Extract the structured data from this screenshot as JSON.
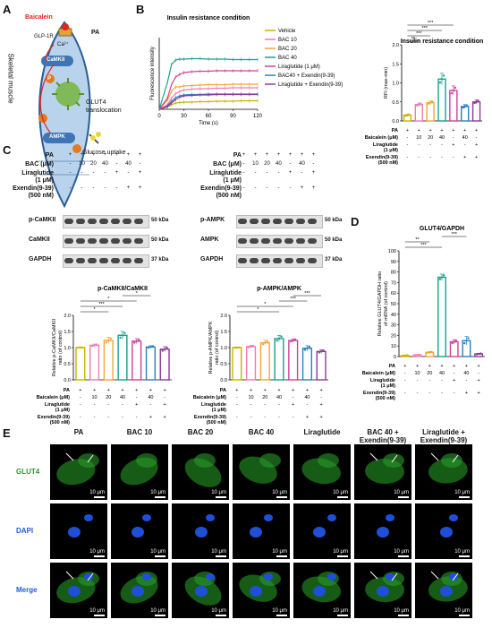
{
  "panels": {
    "A": {
      "letter": "A",
      "receptor_label": "GLP-1R",
      "drug_label": "Baicalein",
      "pa_label": "PA",
      "ca_label": "Ca²⁺",
      "camkii_label": "CaMKII",
      "ampk_label": "AMPK",
      "p_label": "P",
      "tissue_label": "Skeletal muscle",
      "translocation_label": "GLUT4\ntranslocation",
      "uptake_label": "Glucose uptake",
      "colors": {
        "drug": "#e0261c",
        "cell_fill": "#b9d3ec",
        "cell_stroke": "#2d5c94",
        "camkii": "#3f74b5",
        "ampk": "#3f74b5",
        "p": "#e07b22",
        "glut4": "#7ab648"
      }
    },
    "B": {
      "letter": "B",
      "line_title": "Insulin resistance condition",
      "bar_title": "Insulin resistance condition"
    },
    "C": {
      "letter": "C",
      "pa_label": "PA",
      "bac_label": "BAC (μM)",
      "lira_label": "Liraglutide\n(1 μM)",
      "exendin_label": "Exendin(9-39)\n(500 nM)",
      "left_blots": [
        {
          "label": "p-CaMKII",
          "kda": "50 kDa"
        },
        {
          "label": "CaMKII",
          "kda": "50 kDa"
        },
        {
          "label": "GAPDH",
          "kda": "37 kDa"
        }
      ],
      "right_blots": [
        {
          "label": "p-AMPK",
          "kda": "50 kDa"
        },
        {
          "label": "AMPK",
          "kda": "50 kDa"
        },
        {
          "label": "GAPDH",
          "kda": "37 kDa"
        }
      ],
      "blot_pa": [
        "+",
        "+",
        "+",
        "+",
        "+",
        "+",
        "+"
      ],
      "blot_bac": [
        "-",
        "10",
        "20",
        "40",
        "-",
        "40",
        "-"
      ],
      "blot_lira": [
        "-",
        "-",
        "-",
        "-",
        "+",
        "-",
        "+"
      ],
      "blot_exendin": [
        "-",
        "-",
        "-",
        "-",
        "-",
        "+",
        "+"
      ]
    },
    "D": {
      "letter": "D"
    },
    "E": {
      "letter": "E",
      "columns": [
        "PA",
        "BAC 10",
        "BAC 20",
        "BAC 40",
        "Liraglutide",
        "BAC 40 +\nExendin(9-39)",
        "Liraglutide +\nExendin(9-39)"
      ],
      "rows": [
        {
          "label": "GLUT4",
          "color": "#2e9a2e"
        },
        {
          "label": "DAPI",
          "color": "#1f5fd6"
        },
        {
          "label": "Merge",
          "color": "#1f5fd6"
        }
      ],
      "scale_label": "10 μm"
    }
  },
  "bar_axis_labels": {
    "pa": "PA",
    "baicalein": "Baicalein (μM)",
    "liraglutide": "Liraglutide\n(1 μM)",
    "exendin": "Exendin(9-39)\n(500 nM)"
  },
  "bar_axis_values": {
    "pa": [
      "+",
      "+",
      "+",
      "+",
      "+",
      "+",
      "+"
    ],
    "baicalein": [
      "-",
      "10",
      "20",
      "40",
      "-",
      "40",
      "-"
    ],
    "liraglutide": [
      "-",
      "-",
      "-",
      "-",
      "+",
      "-",
      "+"
    ],
    "exendin": [
      "-",
      "-",
      "-",
      "-",
      "-",
      "+",
      "+"
    ]
  },
  "chart_data": [
    {
      "id": "B-line",
      "type": "line",
      "title": "Insulin resistance condition",
      "xlabel": "Time (s)",
      "ylabel": "Fluorescence intensity",
      "xlim": [
        0,
        120
      ],
      "xticks": [
        0,
        30,
        60,
        90,
        120
      ],
      "ylim": [
        0,
        1.6
      ],
      "legend_position": "right",
      "x": [
        0,
        10,
        15,
        20,
        25,
        30,
        40,
        50,
        60,
        70,
        80,
        90,
        100,
        110,
        120
      ],
      "series": [
        {
          "name": "Vehicle",
          "color": "#c8b400",
          "values": [
            0.0,
            0.05,
            0.1,
            0.14,
            0.15,
            0.16,
            0.16,
            0.17,
            0.17,
            0.18,
            0.18,
            0.18,
            0.19,
            0.19,
            0.19
          ]
        },
        {
          "name": "BAC 10",
          "color": "#ee7cb1",
          "values": [
            0.0,
            0.1,
            0.25,
            0.35,
            0.4,
            0.43,
            0.45,
            0.46,
            0.46,
            0.47,
            0.47,
            0.48,
            0.48,
            0.48,
            0.48
          ]
        },
        {
          "name": "BAC 20",
          "color": "#f3a53a",
          "values": [
            0.0,
            0.2,
            0.4,
            0.5,
            0.5,
            0.52,
            0.53,
            0.54,
            0.55,
            0.55,
            0.55,
            0.56,
            0.56,
            0.56,
            0.56
          ]
        },
        {
          "name": "BAC 40",
          "color": "#19a08e",
          "values": [
            0.0,
            0.6,
            1.0,
            1.1,
            1.12,
            1.12,
            1.13,
            1.13,
            1.12,
            1.12,
            1.12,
            1.11,
            1.11,
            1.11,
            1.11
          ]
        },
        {
          "name": "Liraglutide (1 μM)",
          "color": "#d1409a",
          "values": [
            0.0,
            0.25,
            0.55,
            0.72,
            0.78,
            0.82,
            0.84,
            0.85,
            0.85,
            0.86,
            0.86,
            0.86,
            0.86,
            0.86,
            0.86
          ]
        },
        {
          "name": "BAC40 + Exendin(9-39)",
          "color": "#2c7fc2",
          "values": [
            0.0,
            0.08,
            0.18,
            0.26,
            0.3,
            0.32,
            0.33,
            0.33,
            0.34,
            0.34,
            0.34,
            0.34,
            0.34,
            0.34,
            0.34
          ]
        },
        {
          "name": "Liraglutide + Exendin(9-39)",
          "color": "#8a3b94",
          "values": [
            0.0,
            0.06,
            0.14,
            0.22,
            0.27,
            0.3,
            0.31,
            0.32,
            0.32,
            0.33,
            0.33,
            0.33,
            0.33,
            0.33,
            0.33
          ]
        }
      ]
    },
    {
      "id": "B-bar",
      "type": "bar",
      "title": "Insulin resistance condition",
      "ylabel": "RFI (max-min)",
      "ylim": [
        0,
        2.0
      ],
      "yticks": [
        0.0,
        0.5,
        1.0,
        1.5,
        2.0
      ],
      "values": [
        0.15,
        0.43,
        0.48,
        1.1,
        0.8,
        0.38,
        0.5
      ],
      "errors": [
        0.03,
        0.04,
        0.05,
        0.15,
        0.12,
        0.05,
        0.05
      ],
      "colors": [
        "#c8b400",
        "#ee7cb1",
        "#f3a53a",
        "#19a08e",
        "#d1409a",
        "#2c7fc2",
        "#8a3b94"
      ],
      "significance": [
        {
          "from": 0,
          "to": 1,
          "label": "**"
        },
        {
          "from": 0,
          "to": 2,
          "label": "***"
        },
        {
          "from": 0,
          "to": 3,
          "label": "***"
        },
        {
          "from": 0,
          "to": 4,
          "label": "***"
        },
        {
          "from": 3,
          "to": 5,
          "label": "***"
        },
        {
          "from": 4,
          "to": 6,
          "label": "***"
        },
        {
          "from": 3,
          "to": 4,
          "label": "*"
        }
      ]
    },
    {
      "id": "C-left",
      "type": "bar",
      "ylabel": "Relative p-CaMKII/CaMKII\nratio (of control)",
      "title": "p-CaMKII/CaMKII",
      "ylim": [
        0.0,
        2.0
      ],
      "yticks": [
        0.0,
        0.5,
        1.0,
        1.5,
        2.0
      ],
      "values": [
        1.0,
        1.07,
        1.22,
        1.38,
        1.2,
        1.02,
        0.95
      ],
      "errors": [
        0.0,
        0.04,
        0.1,
        0.12,
        0.08,
        0.04,
        0.08
      ],
      "colors": [
        "#c8b400",
        "#ee7cb1",
        "#f3a53a",
        "#19a08e",
        "#d1409a",
        "#2c7fc2",
        "#8a3b94"
      ],
      "significance": [
        {
          "from": 0,
          "to": 2,
          "label": "*"
        },
        {
          "from": 0,
          "to": 3,
          "label": "***"
        },
        {
          "from": 0,
          "to": 4,
          "label": "*"
        },
        {
          "from": 3,
          "to": 5,
          "label": "*"
        },
        {
          "from": 4,
          "to": 6,
          "label": "**"
        },
        {
          "from": 3,
          "to": 4,
          "label": "**"
        }
      ]
    },
    {
      "id": "C-right",
      "type": "bar",
      "ylabel": "Relative p-AMPK/AMPK\nratio (of control)",
      "title": "p-AMPK/AMPK",
      "ylim": [
        0.0,
        2.0
      ],
      "yticks": [
        0.0,
        0.5,
        1.0,
        1.5,
        2.0
      ],
      "values": [
        1.0,
        1.03,
        1.15,
        1.28,
        1.22,
        0.98,
        0.88
      ],
      "errors": [
        0.0,
        0.04,
        0.08,
        0.1,
        0.05,
        0.08,
        0.05
      ],
      "colors": [
        "#c8b400",
        "#ee7cb1",
        "#f3a53a",
        "#19a08e",
        "#d1409a",
        "#2c7fc2",
        "#8a3b94"
      ],
      "significance": [
        {
          "from": 0,
          "to": 3,
          "label": "*"
        },
        {
          "from": 0,
          "to": 4,
          "label": "*"
        },
        {
          "from": 3,
          "to": 5,
          "label": "***"
        },
        {
          "from": 4,
          "to": 6,
          "label": "***"
        }
      ]
    },
    {
      "id": "D",
      "type": "bar",
      "title": "GLUT4/GAPDH",
      "ylabel": "Relative GLUT4/GAPDH ratio\nof mRNA (of control)",
      "ylim": [
        0,
        100
      ],
      "yticks": [
        0,
        10,
        20,
        30,
        40,
        50,
        60,
        70,
        80,
        90,
        100
      ],
      "values": [
        1.0,
        1.5,
        4.0,
        75.0,
        14.0,
        15.0,
        2.5
      ],
      "errors": [
        0.3,
        0.4,
        0.8,
        3.0,
        2.0,
        4.0,
        0.6
      ],
      "colors": [
        "#c8b400",
        "#ee7cb1",
        "#f3a53a",
        "#19a08e",
        "#d1409a",
        "#2c7fc2",
        "#8a3b94"
      ],
      "significance": [
        {
          "from": 0,
          "to": 3,
          "label": "***"
        },
        {
          "from": 0,
          "to": 2,
          "label": "**"
        },
        {
          "from": 3,
          "to": 5,
          "label": "***"
        },
        {
          "from": 4,
          "to": 6,
          "label": "**"
        }
      ]
    }
  ]
}
